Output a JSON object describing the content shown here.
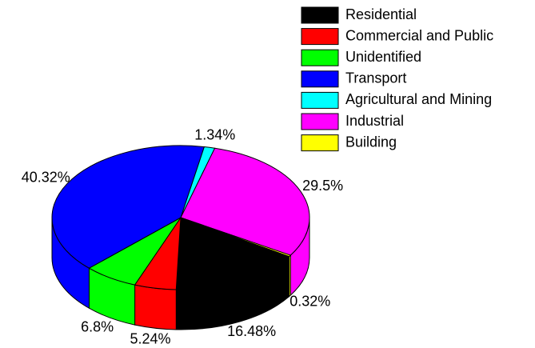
{
  "chart_data": {
    "type": "pie",
    "categories": [
      "Residential",
      "Commercial and Public",
      "Unidentified",
      "Transport",
      "Agricultural and Mining",
      "Industrial",
      "Building"
    ],
    "values": [
      16.48,
      5.24,
      6.8,
      40.32,
      1.34,
      29.5,
      0.32
    ],
    "value_labels": [
      "16.48%",
      "5.24%",
      "6.8%",
      "40.32%",
      "1.34%",
      "29.5%",
      "0.32%"
    ],
    "colors": [
      "#000000",
      "#ff0000",
      "#00ff00",
      "#0000ff",
      "#00ffff",
      "#ff00ff",
      "#ffff00"
    ]
  }
}
